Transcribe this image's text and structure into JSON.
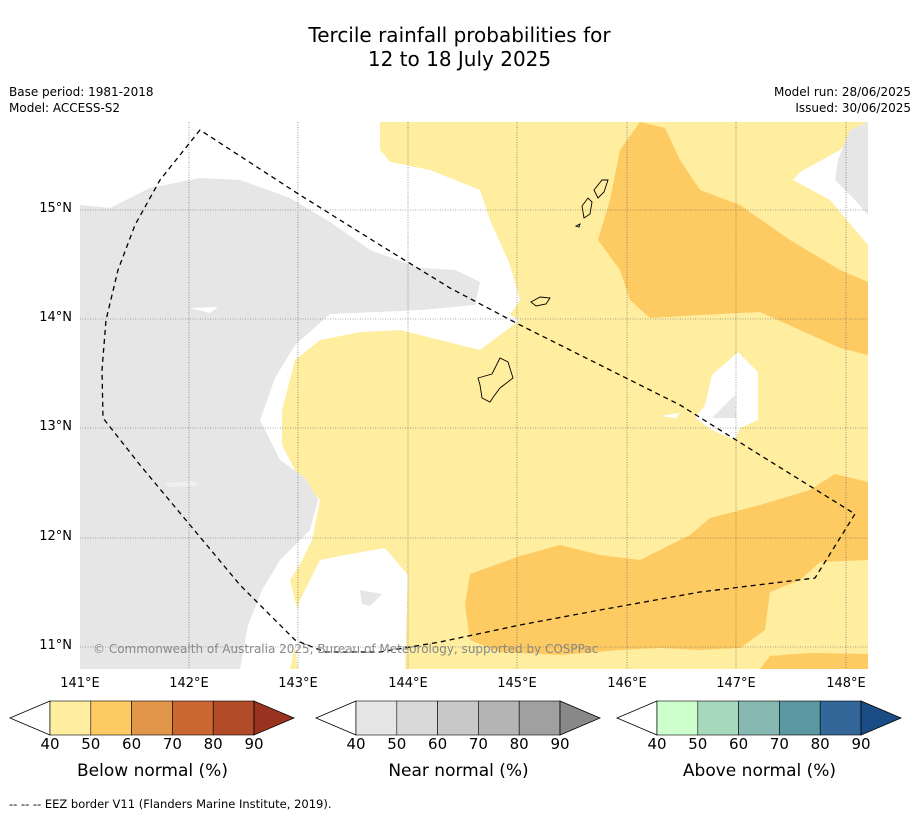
{
  "title_line1": "Tercile rainfall probabilities for",
  "title_line2": "12 to 18 July 2025",
  "base_period": "Base period: 1981-2018",
  "model": "Model: ACCESS-S2",
  "model_run": "Model run: 28/06/2025",
  "issued": "Issued: 30/06/2025",
  "copyright": "© Commonwealth of Australia 2025, Bureau of Meteorology, supported by COSPPac",
  "footnote": "--  --  -- EEZ border V11 (Flanders Marine Institute, 2019).",
  "lat_labels": [
    "15°N",
    "14°N",
    "13°N",
    "12°N",
    "11°N"
  ],
  "lon_labels": [
    "141°E",
    "142°E",
    "143°E",
    "144°E",
    "145°E",
    "146°E",
    "147°E",
    "148°E"
  ],
  "colorbars": [
    {
      "title": "Below normal (%)",
      "ticks": [
        "40",
        "50",
        "60",
        "70",
        "80",
        "90"
      ],
      "colors": [
        "#ffffff",
        "#ffeda0",
        "#fecb63",
        "#e1964a",
        "#cc6633",
        "#b24c28",
        "#99331f"
      ]
    },
    {
      "title": "Near normal (%)",
      "ticks": [
        "40",
        "50",
        "60",
        "70",
        "80",
        "90"
      ],
      "colors": [
        "#ffffff",
        "#e6e6e6",
        "#d9d9d9",
        "#c8c8c8",
        "#b4b4b4",
        "#a0a0a0",
        "#888888"
      ]
    },
    {
      "title": "Above normal (%)",
      "ticks": [
        "40",
        "50",
        "60",
        "70",
        "80",
        "90"
      ],
      "colors": [
        "#ffffff",
        "#ccffcc",
        "#a6d8bc",
        "#85b8b0",
        "#5a97a0",
        "#336699",
        "#1a4d85"
      ]
    }
  ]
}
